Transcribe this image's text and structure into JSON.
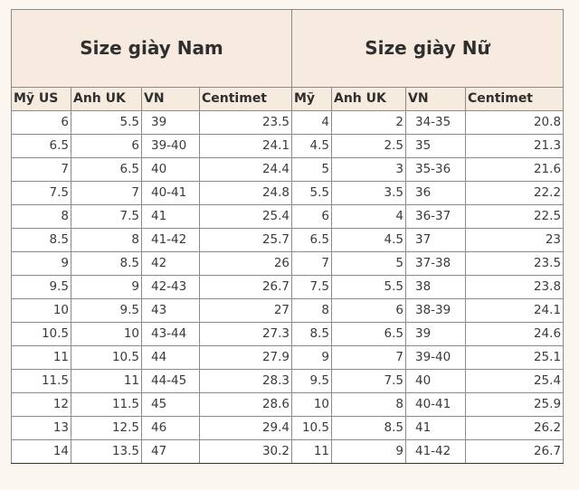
{
  "men": {
    "title": "Size giày Nam",
    "headers": [
      "Mỹ US",
      "Anh UK",
      "VN",
      "Centimet"
    ],
    "rows": [
      [
        "6",
        "5.5",
        "39",
        "23.5"
      ],
      [
        "6.5",
        "6",
        "39-40",
        "24.1"
      ],
      [
        "7",
        "6.5",
        "40",
        "24.4"
      ],
      [
        "7.5",
        "7",
        "40-41",
        "24.8"
      ],
      [
        "8",
        "7.5",
        "41",
        "25.4"
      ],
      [
        "8.5",
        "8",
        "41-42",
        "25.7"
      ],
      [
        "9",
        "8.5",
        "42",
        "26"
      ],
      [
        "9.5",
        "9",
        "42-43",
        "26.7"
      ],
      [
        "10",
        "9.5",
        "43",
        "27"
      ],
      [
        "10.5",
        "10",
        "43-44",
        "27.3"
      ],
      [
        "11",
        "10.5",
        "44",
        "27.9"
      ],
      [
        "11.5",
        "11",
        "44-45",
        "28.3"
      ],
      [
        "12",
        "11.5",
        "45",
        "28.6"
      ],
      [
        "13",
        "12.5",
        "46",
        "29.4"
      ],
      [
        "14",
        "13.5",
        "47",
        "30.2"
      ]
    ]
  },
  "women": {
    "title": "Size giày Nữ",
    "headers": [
      "Mỹ",
      "Anh UK",
      "VN",
      "Centimet"
    ],
    "rows": [
      [
        "4",
        "2",
        "34-35",
        "20.8"
      ],
      [
        "4.5",
        "2.5",
        "35",
        "21.3"
      ],
      [
        "5",
        "3",
        "35-36",
        "21.6"
      ],
      [
        "5.5",
        "3.5",
        "36",
        "22.2"
      ],
      [
        "6",
        "4",
        "36-37",
        "22.5"
      ],
      [
        "6.5",
        "4.5",
        "37",
        "23"
      ],
      [
        "7",
        "5",
        "37-38",
        "23.5"
      ],
      [
        "7.5",
        "5.5",
        "38",
        "23.8"
      ],
      [
        "8",
        "6",
        "38-39",
        "24.1"
      ],
      [
        "8.5",
        "6.5",
        "39",
        "24.6"
      ],
      [
        "9",
        "7",
        "39-40",
        "25.1"
      ],
      [
        "9.5",
        "7.5",
        "40",
        "25.4"
      ],
      [
        "10",
        "8",
        "40-41",
        "25.9"
      ],
      [
        "10.5",
        "8.5",
        "41",
        "26.2"
      ],
      [
        "11",
        "9",
        "41-42",
        "26.7"
      ]
    ]
  }
}
